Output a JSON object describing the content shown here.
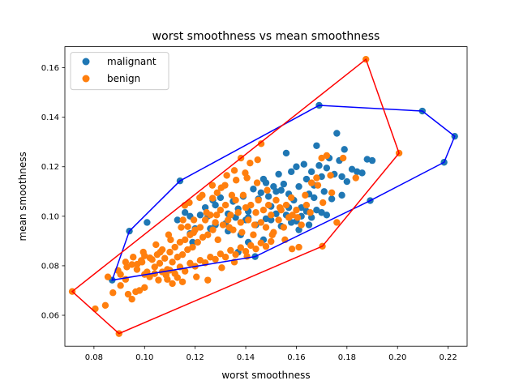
{
  "chart_data": {
    "type": "scatter",
    "title": "worst smoothness vs mean smoothness",
    "xlabel": "worst smoothness",
    "ylabel": "mean smoothness",
    "xlim": [
      0.0685,
      0.2275
    ],
    "ylim": [
      0.0475,
      0.1685
    ],
    "x_ticks": [
      "0.08",
      "0.10",
      "0.12",
      "0.14",
      "0.16",
      "0.18",
      "0.20",
      "0.22"
    ],
    "y_ticks": [
      "0.06",
      "0.08",
      "0.10",
      "0.12",
      "0.14",
      "0.16"
    ],
    "legend_position": "upper-left",
    "colors": {
      "malignant": "#1f77b4",
      "benign": "#ff7f0e",
      "malignant_hull": "#0000ff",
      "benign_hull": "#ff0000"
    },
    "series": [
      {
        "name": "malignant",
        "points": [
          [
            0.094,
            0.094
          ],
          [
            0.114,
            0.1143
          ],
          [
            0.169,
            0.1448
          ],
          [
            0.2098,
            0.1425
          ],
          [
            0.2226,
            0.1323
          ],
          [
            0.2184,
            0.1218
          ],
          [
            0.1892,
            0.1063
          ],
          [
            0.1437,
            0.0837
          ],
          [
            0.0872,
            0.0742
          ],
          [
            0.101,
            0.0975
          ],
          [
            0.116,
            0.1015
          ],
          [
            0.118,
            0.1
          ],
          [
            0.122,
            0.1005
          ],
          [
            0.125,
            0.1
          ],
          [
            0.128,
            0.1045
          ],
          [
            0.13,
            0.1075
          ],
          [
            0.133,
            0.101
          ],
          [
            0.135,
            0.106
          ],
          [
            0.137,
            0.103
          ],
          [
            0.139,
            0.108
          ],
          [
            0.141,
            0.102
          ],
          [
            0.143,
            0.111
          ],
          [
            0.145,
            0.107
          ],
          [
            0.147,
            0.115
          ],
          [
            0.149,
            0.108
          ],
          [
            0.15,
            0.104
          ],
          [
            0.152,
            0.11
          ],
          [
            0.153,
            0.117
          ],
          [
            0.155,
            0.113
          ],
          [
            0.156,
            0.1255
          ],
          [
            0.157,
            0.109
          ],
          [
            0.158,
            0.118
          ],
          [
            0.159,
            0.1065
          ],
          [
            0.16,
            0.12
          ],
          [
            0.161,
            0.112
          ],
          [
            0.162,
            0.1035
          ],
          [
            0.163,
            0.121
          ],
          [
            0.164,
            0.115
          ],
          [
            0.165,
            0.109
          ],
          [
            0.166,
            0.118
          ],
          [
            0.167,
            0.1125
          ],
          [
            0.168,
            0.1285
          ],
          [
            0.169,
            0.1205
          ],
          [
            0.17,
            0.116
          ],
          [
            0.171,
            0.11
          ],
          [
            0.172,
            0.1195
          ],
          [
            0.173,
            0.1235
          ],
          [
            0.174,
            0.107
          ],
          [
            0.175,
            0.117
          ],
          [
            0.176,
            0.1335
          ],
          [
            0.177,
            0.1225
          ],
          [
            0.178,
            0.116
          ],
          [
            0.179,
            0.127
          ],
          [
            0.18,
            0.114
          ],
          [
            0.182,
            0.119
          ],
          [
            0.184,
            0.118
          ],
          [
            0.186,
            0.1175
          ],
          [
            0.188,
            0.123
          ],
          [
            0.19,
            0.1225
          ],
          [
            0.148,
            0.099
          ],
          [
            0.15,
            0.0985
          ],
          [
            0.152,
            0.101
          ],
          [
            0.154,
            0.096
          ],
          [
            0.156,
            0.1005
          ],
          [
            0.158,
            0.0975
          ],
          [
            0.16,
            0.098
          ],
          [
            0.162,
            0.1
          ],
          [
            0.164,
            0.102
          ],
          [
            0.166,
            0.0995
          ],
          [
            0.168,
            0.1025
          ],
          [
            0.17,
            0.1015
          ],
          [
            0.172,
            0.1005
          ],
          [
            0.161,
            0.0945
          ],
          [
            0.165,
            0.0965
          ],
          [
            0.144,
            0.0965
          ],
          [
            0.14,
            0.0985
          ],
          [
            0.136,
            0.0995
          ],
          [
            0.132,
            0.097
          ],
          [
            0.126,
            0.095
          ],
          [
            0.12,
            0.095
          ],
          [
            0.118,
            0.093
          ],
          [
            0.154,
            0.1105
          ],
          [
            0.148,
            0.1135
          ],
          [
            0.151,
            0.112
          ],
          [
            0.146,
            0.1095
          ],
          [
            0.157,
            0.1035
          ],
          [
            0.167,
            0.1075
          ],
          [
            0.178,
            0.1085
          ],
          [
            0.141,
            0.0995
          ],
          [
            0.128,
            0.0965
          ],
          [
            0.133,
            0.094
          ],
          [
            0.138,
            0.0925
          ],
          [
            0.127,
            0.1065
          ],
          [
            0.124,
            0.1035
          ],
          [
            0.113,
            0.0985
          ],
          [
            0.119,
            0.0895
          ],
          [
            0.137,
            0.0855
          ],
          [
            0.141,
            0.0895
          ],
          [
            0.147,
            0.0905
          ]
        ]
      },
      {
        "name": "benign",
        "points": [
          [
            0.1875,
            0.1634
          ],
          [
            0.2006,
            0.1255
          ],
          [
            0.1703,
            0.0879
          ],
          [
            0.0899,
            0.0526
          ],
          [
            0.0714,
            0.0696
          ],
          [
            0.0805,
            0.0626
          ],
          [
            0.0845,
            0.064
          ],
          [
            0.0875,
            0.0691
          ],
          [
            0.0895,
            0.0781
          ],
          [
            0.0855,
            0.0755
          ],
          [
            0.0905,
            0.072
          ],
          [
            0.0925,
            0.0745
          ],
          [
            0.0935,
            0.0685
          ],
          [
            0.095,
            0.0665
          ],
          [
            0.0965,
            0.0695
          ],
          [
            0.098,
            0.07
          ],
          [
            0.1,
            0.0712
          ],
          [
            0.093,
            0.0795
          ],
          [
            0.095,
            0.0805
          ],
          [
            0.097,
            0.0785
          ],
          [
            0.099,
            0.0815
          ],
          [
            0.1,
            0.084
          ],
          [
            0.101,
            0.0775
          ],
          [
            0.103,
            0.0825
          ],
          [
            0.104,
            0.0795
          ],
          [
            0.105,
            0.0845
          ],
          [
            0.106,
            0.081
          ],
          [
            0.107,
            0.0865
          ],
          [
            0.108,
            0.083
          ],
          [
            0.109,
            0.0785
          ],
          [
            0.11,
            0.0855
          ],
          [
            0.111,
            0.0815
          ],
          [
            0.112,
            0.0875
          ],
          [
            0.113,
            0.0835
          ],
          [
            0.114,
            0.0895
          ],
          [
            0.115,
            0.0845
          ],
          [
            0.116,
            0.0905
          ],
          [
            0.117,
            0.0865
          ],
          [
            0.118,
            0.0925
          ],
          [
            0.119,
            0.0875
          ],
          [
            0.12,
            0.0945
          ],
          [
            0.121,
            0.0895
          ],
          [
            0.122,
            0.0955
          ],
          [
            0.123,
            0.0915
          ],
          [
            0.124,
            0.0985
          ],
          [
            0.125,
            0.0925
          ],
          [
            0.126,
            0.1005
          ],
          [
            0.127,
            0.0945
          ],
          [
            0.128,
            0.0975
          ],
          [
            0.129,
            0.0905
          ],
          [
            0.13,
            0.1025
          ],
          [
            0.131,
            0.0965
          ],
          [
            0.132,
            0.1045
          ],
          [
            0.133,
            0.0985
          ],
          [
            0.134,
            0.1005
          ],
          [
            0.135,
            0.0945
          ],
          [
            0.136,
            0.1065
          ],
          [
            0.137,
            0.1015
          ],
          [
            0.138,
            0.0975
          ],
          [
            0.139,
            0.1085
          ],
          [
            0.14,
            0.1035
          ],
          [
            0.141,
            0.0985
          ],
          [
            0.142,
            0.1045
          ],
          [
            0.143,
            0.0925
          ],
          [
            0.144,
            0.1015
          ],
          [
            0.145,
            0.1065
          ],
          [
            0.146,
            0.0975
          ],
          [
            0.147,
            0.1025
          ],
          [
            0.148,
            0.0955
          ],
          [
            0.149,
            0.1045
          ],
          [
            0.15,
            0.1005
          ],
          [
            0.151,
            0.0935
          ],
          [
            0.152,
            0.1065
          ],
          [
            0.153,
            0.0985
          ],
          [
            0.154,
            0.1025
          ],
          [
            0.155,
            0.0955
          ],
          [
            0.156,
            0.1045
          ],
          [
            0.157,
            0.0995
          ],
          [
            0.158,
            0.1075
          ],
          [
            0.16,
            0.1025
          ],
          [
            0.162,
            0.0965
          ],
          [
            0.164,
            0.1045
          ],
          [
            0.166,
            0.1135
          ],
          [
            0.168,
            0.1155
          ],
          [
            0.17,
            0.1235
          ],
          [
            0.172,
            0.1245
          ],
          [
            0.174,
            0.1095
          ],
          [
            0.176,
            0.0975
          ],
          [
            0.161,
            0.0875
          ],
          [
            0.1583,
            0.0868
          ],
          [
            0.1447,
            0.1228
          ],
          [
            0.1381,
            0.1235
          ],
          [
            0.1398,
            0.1175
          ],
          [
            0.1362,
            0.1146
          ],
          [
            0.1417,
            0.1215
          ],
          [
            0.1461,
            0.1293
          ],
          [
            0.1303,
            0.1115
          ],
          [
            0.1287,
            0.1095
          ],
          [
            0.1269,
            0.1073
          ],
          [
            0.1159,
            0.1044
          ],
          [
            0.1152,
            0.0985
          ],
          [
            0.1171,
            0.0958
          ],
          [
            0.1194,
            0.0934
          ],
          [
            0.1103,
            0.0905
          ],
          [
            0.1062,
            0.0855
          ],
          [
            0.1021,
            0.0832
          ],
          [
            0.0987,
            0.0821
          ],
          [
            0.0971,
            0.0806
          ],
          [
            0.1,
            0.0765
          ],
          [
            0.102,
            0.0755
          ],
          [
            0.104,
            0.0768
          ],
          [
            0.1055,
            0.0742
          ],
          [
            0.107,
            0.0775
          ],
          [
            0.1085,
            0.0762
          ],
          [
            0.11,
            0.0782
          ],
          [
            0.112,
            0.0768
          ],
          [
            0.114,
            0.0795
          ],
          [
            0.116,
            0.0778
          ],
          [
            0.118,
            0.081
          ],
          [
            0.12,
            0.0798
          ],
          [
            0.122,
            0.0822
          ],
          [
            0.124,
            0.0812
          ],
          [
            0.126,
            0.0835
          ],
          [
            0.128,
            0.0826
          ],
          [
            0.13,
            0.0848
          ],
          [
            0.132,
            0.0835
          ],
          [
            0.134,
            0.0862
          ],
          [
            0.136,
            0.0845
          ],
          [
            0.138,
            0.0873
          ],
          [
            0.14,
            0.0858
          ],
          [
            0.142,
            0.0882
          ],
          [
            0.144,
            0.0868
          ],
          [
            0.146,
            0.0892
          ],
          [
            0.148,
            0.0878
          ],
          [
            0.15,
            0.0898
          ],
          [
            0.115,
            0.0735
          ],
          [
            0.113,
            0.0752
          ],
          [
            0.111,
            0.0728
          ],
          [
            0.109,
            0.0745
          ],
          [
            0.125,
            0.0742
          ],
          [
            0.1205,
            0.0755
          ],
          [
            0.1305,
            0.0792
          ],
          [
            0.1355,
            0.0815
          ],
          [
            0.1405,
            0.0838
          ],
          [
            0.1505,
            0.0925
          ],
          [
            0.1555,
            0.0905
          ],
          [
            0.1605,
            0.0995
          ],
          [
            0.1655,
            0.1015
          ],
          [
            0.1705,
            0.1055
          ],
          [
            0.1485,
            0.1105
          ],
          [
            0.1445,
            0.1135
          ],
          [
            0.1405,
            0.1155
          ],
          [
            0.1345,
            0.1085
          ],
          [
            0.1245,
            0.1015
          ],
          [
            0.1195,
            0.0985
          ],
          [
            0.1145,
            0.0955
          ],
          [
            0.1095,
            0.0925
          ],
          [
            0.1045,
            0.0885
          ],
          [
            0.0995,
            0.0855
          ],
          [
            0.0955,
            0.0835
          ],
          [
            0.0925,
            0.0815
          ],
          [
            0.0905,
            0.0765
          ],
          [
            0.1177,
            0.1055
          ],
          [
            0.1228,
            0.1085
          ],
          [
            0.1318,
            0.1125
          ],
          [
            0.1355,
            0.1185
          ],
          [
            0.1325,
            0.1165
          ],
          [
            0.1268,
            0.1125
          ],
          [
            0.1218,
            0.1075
          ],
          [
            0.1285,
            0.1005
          ],
          [
            0.1335,
            0.0955
          ],
          [
            0.1385,
            0.0935
          ],
          [
            0.1435,
            0.0965
          ],
          [
            0.1535,
            0.1035
          ],
          [
            0.1585,
            0.1005
          ],
          [
            0.1635,
            0.1085
          ],
          [
            0.1685,
            0.1125
          ],
          [
            0.1735,
            0.1165
          ],
          [
            0.1785,
            0.1235
          ],
          [
            0.1835,
            0.1155
          ]
        ]
      }
    ],
    "hulls": [
      {
        "name": "malignant",
        "points": [
          [
            0.094,
            0.094
          ],
          [
            0.114,
            0.1143
          ],
          [
            0.169,
            0.1448
          ],
          [
            0.2098,
            0.1425
          ],
          [
            0.2226,
            0.1323
          ],
          [
            0.2184,
            0.1218
          ],
          [
            0.1892,
            0.1063
          ],
          [
            0.1437,
            0.0837
          ],
          [
            0.0872,
            0.0742
          ]
        ]
      },
      {
        "name": "benign",
        "points": [
          [
            0.0714,
            0.0696
          ],
          [
            0.1875,
            0.1634
          ],
          [
            0.2006,
            0.1255
          ],
          [
            0.1703,
            0.0879
          ],
          [
            0.0899,
            0.0526
          ]
        ]
      }
    ]
  }
}
